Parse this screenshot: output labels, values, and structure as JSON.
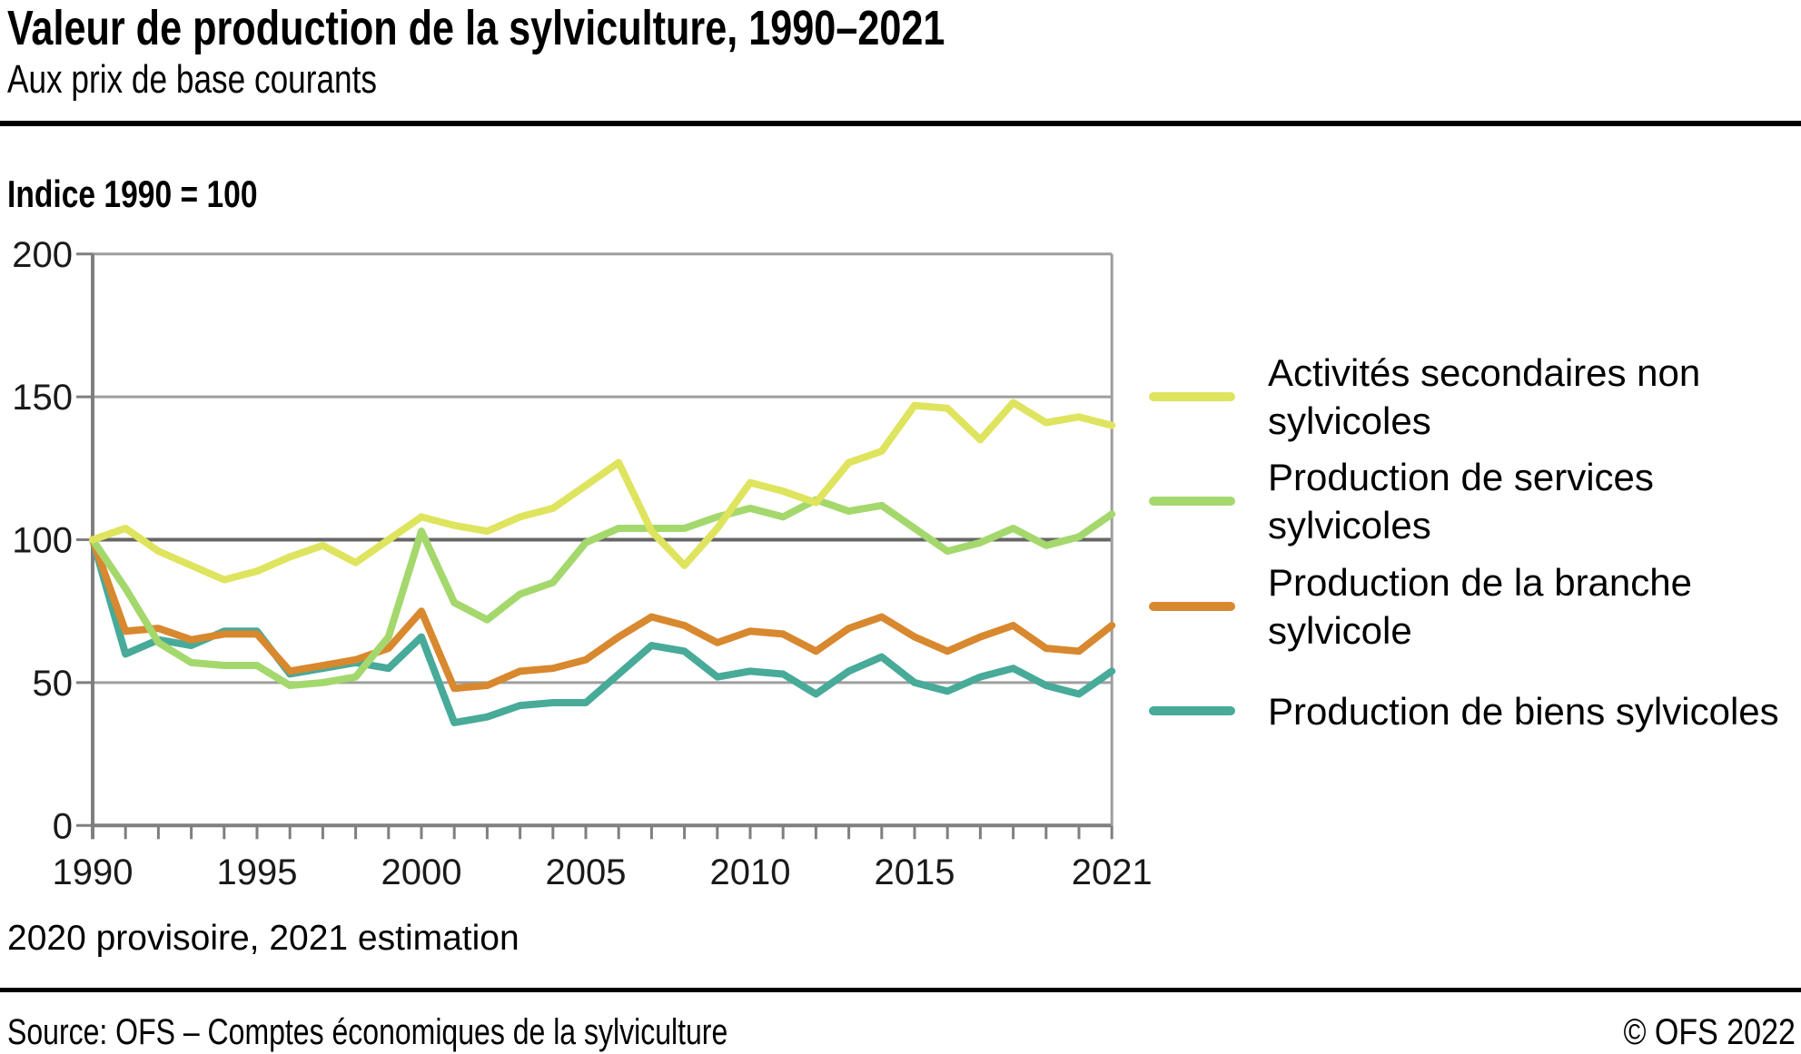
{
  "header": {
    "title": "Valeur de production de la sylviculture, 1990–2021",
    "subtitle": "Aux prix de base courants"
  },
  "index_note": "Indice 1990 = 100",
  "footnote": "2020 provisoire, 2021 estimation",
  "footer": {
    "source": "Source: OFS – Comptes économiques de la sylviculture",
    "copyright": "© OFS 2022"
  },
  "chart_data": {
    "type": "line",
    "title": "Valeur de production de la sylviculture, 1990–2021",
    "subtitle": "Aux prix de base courants",
    "ylabel": "Indice 1990 = 100",
    "ylim": [
      0,
      200
    ],
    "y_ticks": [
      0,
      50,
      100,
      150,
      200
    ],
    "emphasized_y_gridline": 100,
    "grid": true,
    "legend_position": "right",
    "x": [
      1990,
      1991,
      1992,
      1993,
      1994,
      1995,
      1996,
      1997,
      1998,
      1999,
      2000,
      2001,
      2002,
      2003,
      2004,
      2005,
      2006,
      2007,
      2008,
      2009,
      2010,
      2011,
      2012,
      2013,
      2014,
      2015,
      2016,
      2017,
      2018,
      2019,
      2020,
      2021
    ],
    "x_tick_labels": [
      1990,
      1995,
      2000,
      2005,
      2010,
      2015,
      2021
    ],
    "axis_color": "#7f7f7f",
    "gridline_color": "#9e9e9e",
    "emphasized_gridline_color": "#666666",
    "label_color": "#1a1a1a",
    "series": [
      {
        "id": "activites-secondaires-non-sylvicoles",
        "name": "Activités secondaires non sylvicoles",
        "color": "#dfe45f",
        "values": [
          100,
          104,
          96,
          91,
          86,
          89,
          94,
          98,
          92,
          100,
          108,
          105,
          103,
          108,
          111,
          119,
          127,
          103,
          91,
          104,
          120,
          117,
          113,
          127,
          131,
          147,
          146,
          135,
          148,
          141,
          143,
          140
        ]
      },
      {
        "id": "production-de-services-sylvicoles",
        "name": "Production de services sylvicoles",
        "color": "#a4d86d",
        "values": [
          100,
          83,
          64,
          57,
          56,
          56,
          49,
          50,
          52,
          66,
          103,
          78,
          72,
          81,
          85,
          99,
          104,
          104,
          104,
          108,
          111,
          108,
          114,
          110,
          112,
          104,
          96,
          99,
          104,
          98,
          101,
          109
        ]
      },
      {
        "id": "production-de-la-branche-sylvicole",
        "name": "Production de la branche sylvicole",
        "color": "#d8882e",
        "values": [
          100,
          68,
          69,
          65,
          67,
          67,
          54,
          56,
          58,
          62,
          75,
          48,
          49,
          54,
          55,
          58,
          66,
          73,
          70,
          64,
          68,
          67,
          61,
          69,
          73,
          66,
          61,
          66,
          70,
          62,
          61,
          70
        ]
      },
      {
        "id": "production-de-biens-sylvicoles",
        "name": "Production de biens sylvicoles",
        "color": "#48aa99",
        "values": [
          100,
          60,
          65,
          63,
          68,
          68,
          53,
          55,
          57,
          55,
          66,
          36,
          38,
          42,
          43,
          43,
          53,
          63,
          61,
          52,
          54,
          53,
          46,
          54,
          59,
          50,
          47,
          52,
          55,
          49,
          46,
          54
        ]
      }
    ]
  }
}
